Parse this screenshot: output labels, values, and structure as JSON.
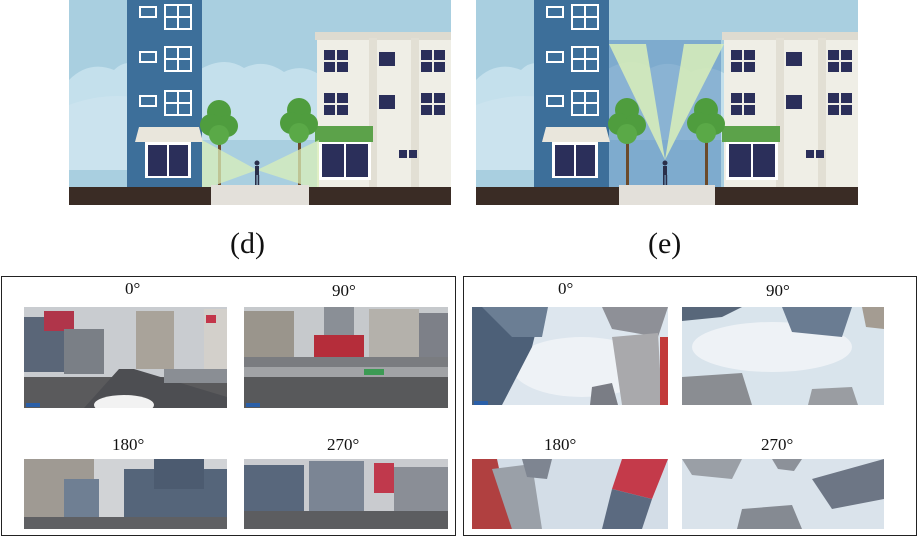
{
  "captions": {
    "d": "(d)",
    "e": "(e)"
  },
  "street_panel": {
    "views": [
      {
        "angle": "0°"
      },
      {
        "angle": "90°"
      },
      {
        "angle": "180°"
      },
      {
        "angle": "270°"
      }
    ]
  },
  "sky_panel": {
    "views": [
      {
        "angle": "0°"
      },
      {
        "angle": "90°"
      },
      {
        "angle": "180°"
      },
      {
        "angle": "270°"
      }
    ]
  },
  "colors": {
    "sky": "#a9cfe0",
    "tower": "#3d6f9a",
    "tower_lit": "#5b8ec0",
    "ground": "#3a2c25",
    "sidewalk": "#e3e0da",
    "cream_building": "#efeee6",
    "awning_green": "#5ca24a",
    "tree_green": "#4f9d3e",
    "view_cone": "#d9efb9",
    "cloud": "#c4e0ec"
  }
}
